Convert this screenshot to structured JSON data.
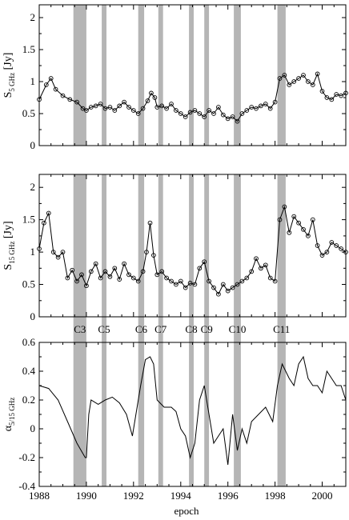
{
  "chart_data": [
    {
      "id": "s5",
      "type": "line",
      "ylabel_main": "S",
      "ylabel_sub": "5 GHz",
      "ylabel_unit": "[Jy]",
      "xlim": [
        1988,
        2001
      ],
      "ylim": [
        0,
        2.2
      ],
      "yticks": [
        0,
        0.5,
        1,
        1.5,
        2
      ],
      "ytick_labels": [
        "0",
        "0.5",
        "1",
        "1.5",
        "2"
      ],
      "markers": "open-circle",
      "series": [
        {
          "x": [
            1988.0,
            1988.3,
            1988.5,
            1988.7,
            1989.0,
            1989.3,
            1989.6,
            1989.85,
            1990.0,
            1990.2,
            1990.4,
            1990.6,
            1990.8,
            1991.0,
            1991.2,
            1991.4,
            1991.6,
            1991.8,
            1992.0,
            1992.2,
            1992.4,
            1992.6,
            1992.75,
            1992.9,
            1993.0,
            1993.2,
            1993.4,
            1993.6,
            1993.8,
            1994.0,
            1994.2,
            1994.4,
            1994.6,
            1994.8,
            1995.0,
            1995.2,
            1995.4,
            1995.6,
            1995.8,
            1996.0,
            1996.2,
            1996.4,
            1996.6,
            1996.8,
            1997.0,
            1997.2,
            1997.4,
            1997.6,
            1997.8,
            1998.0,
            1998.2,
            1998.4,
            1998.6,
            1998.8,
            1999.0,
            1999.2,
            1999.4,
            1999.6,
            1999.8,
            2000.0,
            2000.2,
            2000.4,
            2000.6,
            2000.8,
            2001.0
          ],
          "y": [
            0.72,
            0.95,
            1.05,
            0.88,
            0.78,
            0.72,
            0.68,
            0.58,
            0.55,
            0.6,
            0.62,
            0.65,
            0.58,
            0.6,
            0.55,
            0.62,
            0.68,
            0.6,
            0.55,
            0.5,
            0.58,
            0.7,
            0.82,
            0.75,
            0.6,
            0.62,
            0.58,
            0.65,
            0.55,
            0.5,
            0.45,
            0.52,
            0.55,
            0.5,
            0.45,
            0.55,
            0.5,
            0.6,
            0.48,
            0.42,
            0.45,
            0.38,
            0.5,
            0.55,
            0.6,
            0.58,
            0.62,
            0.65,
            0.58,
            0.68,
            1.05,
            1.1,
            0.95,
            1.0,
            1.05,
            1.1,
            1.0,
            0.95,
            1.12,
            0.85,
            0.75,
            0.72,
            0.8,
            0.78,
            0.82
          ]
        }
      ]
    },
    {
      "id": "s15",
      "type": "line",
      "ylabel_main": "S",
      "ylabel_sub": "15 GHz",
      "ylabel_unit": "[Jy]",
      "xlim": [
        1988,
        2001
      ],
      "ylim": [
        0,
        2.2
      ],
      "yticks": [
        0,
        0.5,
        1,
        1.5,
        2
      ],
      "ytick_labels": [
        "0",
        "0.5",
        "1",
        "1.5",
        "2"
      ],
      "markers": "open-circle",
      "series": [
        {
          "x": [
            1988.0,
            1988.2,
            1988.4,
            1988.6,
            1988.8,
            1989.0,
            1989.2,
            1989.4,
            1989.6,
            1989.8,
            1990.0,
            1990.2,
            1990.4,
            1990.6,
            1990.8,
            1991.0,
            1991.2,
            1991.4,
            1991.6,
            1991.8,
            1992.0,
            1992.2,
            1992.4,
            1992.55,
            1992.7,
            1992.85,
            1993.0,
            1993.2,
            1993.4,
            1993.6,
            1993.8,
            1994.0,
            1994.2,
            1994.4,
            1994.6,
            1994.8,
            1995.0,
            1995.2,
            1995.4,
            1995.6,
            1995.8,
            1996.0,
            1996.2,
            1996.4,
            1996.6,
            1996.8,
            1997.0,
            1997.2,
            1997.4,
            1997.6,
            1997.8,
            1998.0,
            1998.2,
            1998.4,
            1998.6,
            1998.8,
            1999.0,
            1999.2,
            1999.4,
            1999.6,
            1999.8,
            2000.0,
            2000.2,
            2000.4,
            2000.6,
            2000.8,
            2001.0
          ],
          "y": [
            1.05,
            1.45,
            1.6,
            1.0,
            0.92,
            1.0,
            0.6,
            0.72,
            0.55,
            0.65,
            0.48,
            0.7,
            0.82,
            0.6,
            0.7,
            0.62,
            0.75,
            0.58,
            0.82,
            0.65,
            0.6,
            0.55,
            0.7,
            1.0,
            1.45,
            0.95,
            0.65,
            0.7,
            0.6,
            0.55,
            0.5,
            0.55,
            0.45,
            0.52,
            0.5,
            0.75,
            0.85,
            0.55,
            0.45,
            0.35,
            0.5,
            0.4,
            0.45,
            0.5,
            0.55,
            0.6,
            0.7,
            0.9,
            0.75,
            0.8,
            0.6,
            0.55,
            1.5,
            1.7,
            1.3,
            1.55,
            1.45,
            1.35,
            1.25,
            1.5,
            1.1,
            0.95,
            1.0,
            1.15,
            1.1,
            1.05,
            1.0
          ]
        }
      ]
    },
    {
      "id": "alpha",
      "type": "line",
      "ylabel_main": "α",
      "ylabel_sub": "5/15 GHz",
      "ylabel_unit": "",
      "xlabel": "epoch",
      "xlim": [
        1988,
        2001
      ],
      "ylim": [
        -0.4,
        0.6
      ],
      "yticks": [
        -0.4,
        -0.2,
        0,
        0.2,
        0.4,
        0.6
      ],
      "ytick_labels": [
        "-0.4",
        "-0.2",
        "0",
        "0.2",
        "0.4",
        "0.6"
      ],
      "xticks": [
        1988,
        1990,
        1992,
        1994,
        1996,
        1998,
        2000
      ],
      "xtick_labels": [
        "1988",
        "1990",
        "1992",
        "1994",
        "1996",
        "1998",
        "2000"
      ],
      "markers": "none",
      "series": [
        {
          "x": [
            1988.0,
            1988.4,
            1988.8,
            1989.2,
            1989.6,
            1989.95,
            1990.0,
            1990.1,
            1990.2,
            1990.5,
            1990.8,
            1991.1,
            1991.4,
            1991.7,
            1991.95,
            1992.1,
            1992.3,
            1992.5,
            1992.7,
            1992.85,
            1993.0,
            1993.3,
            1993.6,
            1993.8,
            1994.0,
            1994.2,
            1994.4,
            1994.6,
            1994.8,
            1995.0,
            1995.2,
            1995.4,
            1995.6,
            1995.8,
            1996.0,
            1996.2,
            1996.4,
            1996.6,
            1996.8,
            1997.0,
            1997.3,
            1997.6,
            1997.9,
            1998.1,
            1998.3,
            1998.6,
            1998.8,
            1999.0,
            1999.2,
            1999.4,
            1999.6,
            1999.8,
            2000.0,
            2000.2,
            2000.4,
            2000.6,
            2000.8,
            2001.0
          ],
          "y": [
            0.3,
            0.28,
            0.2,
            0.05,
            -0.1,
            -0.2,
            -0.2,
            0.1,
            0.2,
            0.17,
            0.2,
            0.22,
            0.18,
            0.1,
            -0.05,
            0.1,
            0.3,
            0.48,
            0.5,
            0.45,
            0.2,
            0.15,
            0.15,
            0.12,
            0.0,
            -0.05,
            -0.2,
            -0.1,
            0.2,
            0.3,
            0.1,
            -0.1,
            -0.05,
            0.0,
            -0.25,
            0.1,
            -0.15,
            0.0,
            -0.1,
            0.05,
            0.1,
            0.15,
            0.05,
            0.3,
            0.45,
            0.35,
            0.3,
            0.45,
            0.5,
            0.35,
            0.3,
            0.3,
            0.25,
            0.4,
            0.35,
            0.3,
            0.3,
            0.2
          ]
        }
      ]
    }
  ],
  "components": [
    {
      "label": "C3",
      "x0": 1989.45,
      "x1": 1990.0
    },
    {
      "label": "C5",
      "x0": 1990.65,
      "x1": 1990.85
    },
    {
      "label": "C6",
      "x0": 1992.2,
      "x1": 1992.45
    },
    {
      "label": "C7",
      "x0": 1993.05,
      "x1": 1993.25
    },
    {
      "label": "C8",
      "x0": 1994.35,
      "x1": 1994.55
    },
    {
      "label": "C9",
      "x0": 1995.0,
      "x1": 1995.2
    },
    {
      "label": "C10",
      "x0": 1996.25,
      "x1": 1996.55
    },
    {
      "label": "C11",
      "x0": 1998.1,
      "x1": 1998.45
    }
  ],
  "colors": {
    "band": "#b5b5b5",
    "line": "#000000",
    "frame": "#000000"
  }
}
